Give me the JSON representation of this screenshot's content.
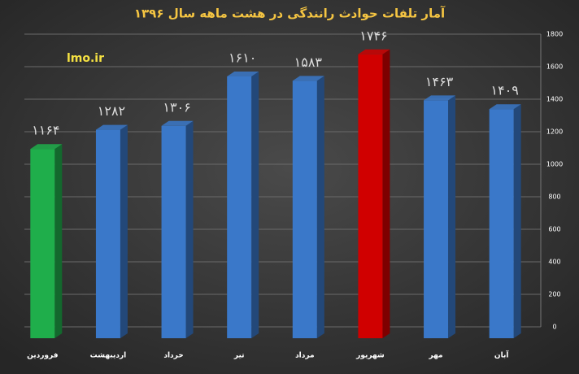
{
  "chart_data": {
    "type": "bar",
    "title": "آمار تلفات حوادث رانندگی در هشت ماهه سال ۱۳۹۶",
    "annotation": "lmo.ir",
    "categories": [
      "فروردین",
      "اردیبهشت",
      "خرداد",
      "تیر",
      "مرداد",
      "شهریور",
      "مهر",
      "آبان"
    ],
    "values": [
      1164,
      1282,
      1306,
      1610,
      1583,
      1746,
      1463,
      1409
    ],
    "value_labels": [
      "۱۱۶۴",
      "۱۲۸۲",
      "۱۳۰۶",
      "۱۶۱۰",
      "۱۵۸۳",
      "۱۷۴۶",
      "۱۴۶۳",
      "۱۴۰۹"
    ],
    "colors": [
      "#1fae4b",
      "#3a78c9",
      "#3a78c9",
      "#3a78c9",
      "#3a78c9",
      "#d00000",
      "#3a78c9",
      "#3a78c9"
    ],
    "ylim": [
      0,
      1800
    ],
    "yticks": [
      0,
      200,
      400,
      600,
      800,
      1000,
      1200,
      1400,
      1600,
      1800
    ],
    "grid": true
  }
}
